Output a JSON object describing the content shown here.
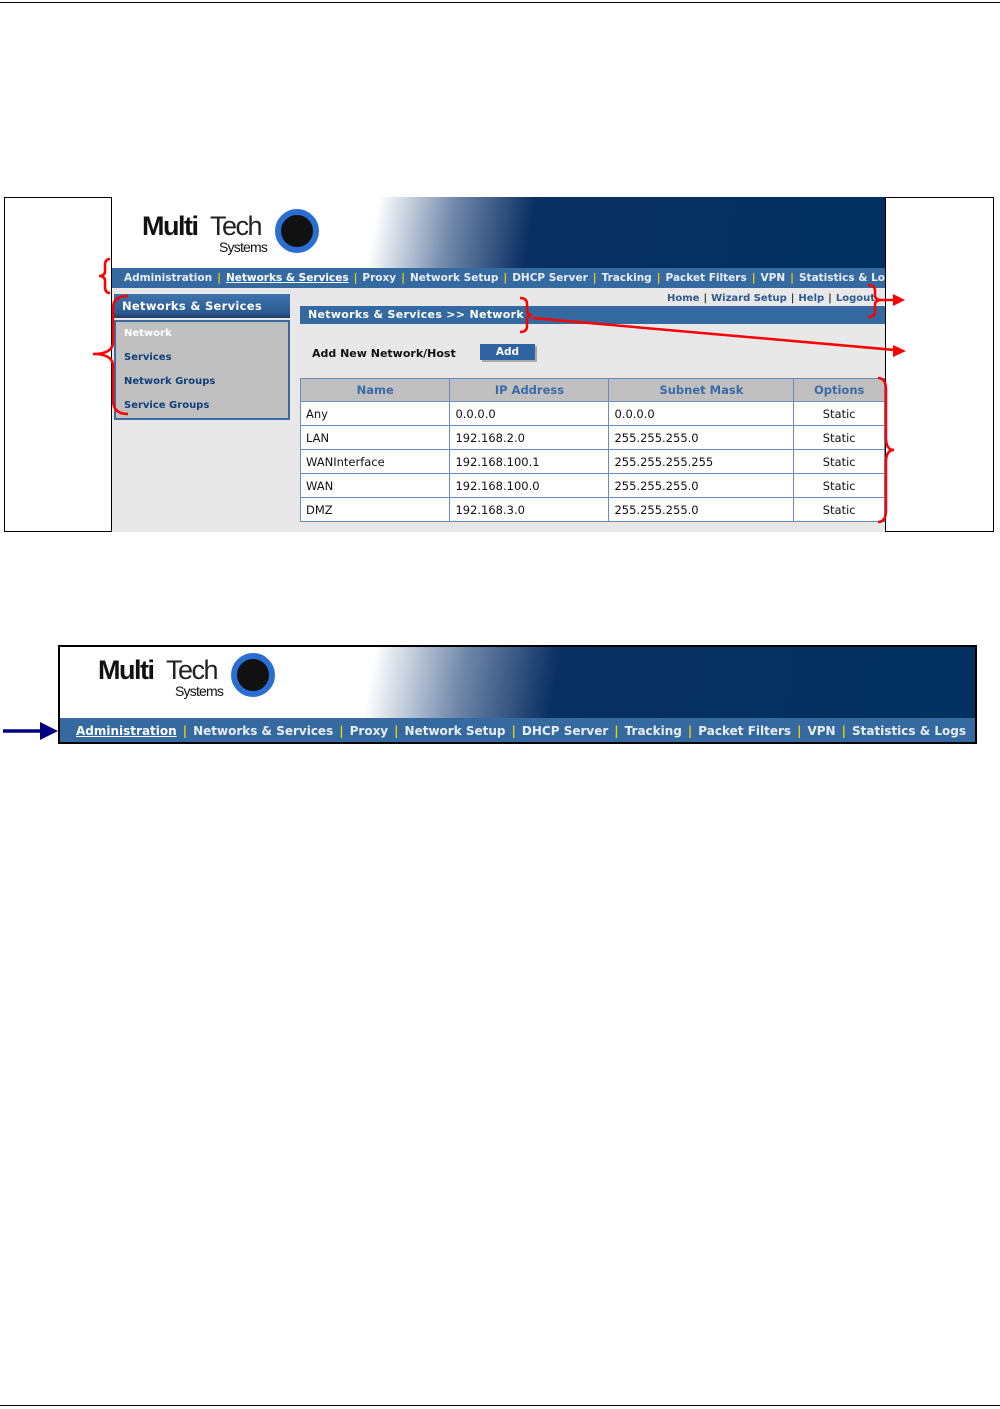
{
  "logo": {
    "word1": "Multi",
    "word2": "Tech",
    "word3": "Systems"
  },
  "nav": [
    "Administration",
    "Networks & Services",
    "Proxy",
    "Network Setup",
    "DHCP Server",
    "Tracking",
    "Packet Filters",
    "VPN",
    "Statistics & Logs"
  ],
  "screen1": {
    "active_nav": "Networks & Services",
    "sidebar": {
      "title": "Networks & Services",
      "items": [
        "Network",
        "Services",
        "Network Groups",
        "Service Groups"
      ]
    },
    "toplinks": [
      "Home",
      "Wizard Setup",
      "Help",
      "Logout"
    ],
    "breadcrumb": "Networks & Services >> Network",
    "add_label": "Add New Network/Host",
    "add_button": "Add",
    "table": {
      "headers": [
        "Name",
        "IP Address",
        "Subnet Mask",
        "Options"
      ],
      "rows": [
        [
          "Any",
          "0.0.0.0",
          "0.0.0.0",
          "Static"
        ],
        [
          "LAN",
          "192.168.2.0",
          "255.255.255.0",
          "Static"
        ],
        [
          "WANInterface",
          "192.168.100.1",
          "255.255.255.255",
          "Static"
        ],
        [
          "WAN",
          "192.168.100.0",
          "255.255.255.0",
          "Static"
        ],
        [
          "DMZ",
          "192.168.3.0",
          "255.255.255.0",
          "Static"
        ]
      ]
    }
  },
  "screen2": {
    "active_nav": "Administration"
  },
  "colors": {
    "nav_bar": "#356aa0",
    "annotation": "#ff0000",
    "arrow": "#000080"
  }
}
